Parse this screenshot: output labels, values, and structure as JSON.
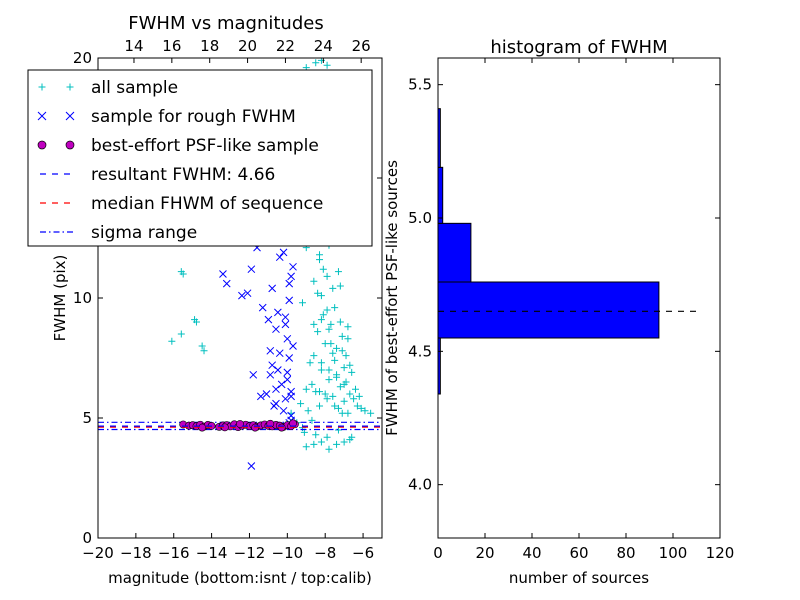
{
  "chart_data": [
    {
      "type": "scatter",
      "title": "FWHM vs magnitudes",
      "xlabel": "magnitude (bottom:isnt / top:calib)",
      "ylabel": "FWHM (pix)",
      "xlim": [
        -20,
        -5
      ],
      "ylim": [
        0,
        20
      ],
      "top_xlim": [
        12.1,
        27.1
      ],
      "x_ticks": [
        "−20",
        "−18",
        "−16",
        "−14",
        "−12",
        "−10",
        "−8",
        "−6"
      ],
      "y_ticks": [
        "0",
        "5",
        "10",
        "15",
        "20"
      ],
      "top_ticks": [
        "14",
        "16",
        "18",
        "20",
        "22",
        "24",
        "26"
      ],
      "grid": false,
      "legend_position": "upper-left",
      "legend": [
        "all sample",
        "sample for rough FWHM",
        "best-effort PSF-like sample",
        "resultant FWHM: 4.66",
        "median FHWM of sequence",
        "sigma range"
      ],
      "colors": {
        "all_sample": "#00bfbf",
        "rough_sample": "#0000ff",
        "psf_sample": "#bf00bf",
        "resultant_line": "#0000ff",
        "median_line": "#ff0000",
        "sigma_line": "#0000ff"
      },
      "resultant_fwhm": 4.66,
      "median_fwhm_sequence": 4.62,
      "sigma_range": [
        4.52,
        4.82
      ],
      "series": [
        {
          "name": "all sample",
          "marker": "+",
          "x": [
            -15.6,
            -15.5,
            -15.6,
            -14.9,
            -14.8,
            -14.4,
            -14.5,
            -16.1,
            -10.1,
            -9.8,
            -9.5,
            -9.3,
            -9.2,
            -9.0,
            -8.9,
            -8.8,
            -8.7,
            -8.6,
            -8.5,
            -8.4,
            -8.3,
            -8.2,
            -8.1,
            -8.0,
            -7.9,
            -7.8,
            -7.7,
            -7.6,
            -7.5,
            -7.4,
            -7.3,
            -7.2,
            -7.1,
            -7.0,
            -6.9,
            -6.8,
            -6.7,
            -6.5,
            -6.3,
            -6.1,
            -5.9,
            -5.6,
            -9.2,
            -9.0,
            -8.8,
            -8.6,
            -8.4,
            -8.2,
            -8.0,
            -7.8,
            -7.6,
            -7.4,
            -7.2,
            -7.0,
            -6.8,
            -6.6,
            -6.4,
            -6.2,
            -8.9,
            -8.7,
            -8.5,
            -8.3,
            -8.1,
            -7.9,
            -7.7,
            -7.5,
            -7.3,
            -7.1,
            -6.9,
            -6.7,
            -8.8,
            -8.4,
            -8.0,
            -7.6,
            -7.2,
            -6.8,
            -9.1,
            -8.5,
            -7.9,
            -7.3,
            -6.7,
            -9.0,
            -8.6,
            -8.2,
            -7.8,
            -7.4,
            -7.0,
            -6.6,
            -8.7,
            -8.3,
            -7.9,
            -7.5,
            -7.1,
            -8.6,
            -8.2,
            -7.8,
            -7.4,
            -7.0,
            -8.4,
            -8.0,
            -7.6,
            -8.1,
            -7.7,
            -8.5,
            -9.0,
            -8.2,
            -7.9,
            -8.6,
            -8.9,
            -8.3,
            -8.7,
            -8.1,
            -8.0,
            -8.4,
            -7.8,
            -8.2
          ],
          "y": [
            11.1,
            11.0,
            8.5,
            9.1,
            9.0,
            7.8,
            8.0,
            8.2,
            4.7,
            5.2,
            4.8,
            5.6,
            4.6,
            6.2,
            5.3,
            7.3,
            4.9,
            8.9,
            6.1,
            10.2,
            5.5,
            7.0,
            11.2,
            6.0,
            9.5,
            6.6,
            8.1,
            5.9,
            7.4,
            6.8,
            5.4,
            6.3,
            7.8,
            5.7,
            6.5,
            5.2,
            6.0,
            5.8,
            5.5,
            5.4,
            5.3,
            5.2,
            9.8,
            12.1,
            13.5,
            10.7,
            14.2,
            9.1,
            12.5,
            8.7,
            10.4,
            7.9,
            9.0,
            7.1,
            8.3,
            6.9,
            6.2,
            5.9,
            15.0,
            16.8,
            13.9,
            11.8,
            15.6,
            10.9,
            12.8,
            9.6,
            11.1,
            8.4,
            7.6,
            7.2,
            18.6,
            17.2,
            14.8,
            13.0,
            10.5,
            8.8,
            4.4,
            4.3,
            4.2,
            4.5,
            4.1,
            3.8,
            3.9,
            4.0,
            3.7,
            3.9,
            4.0,
            4.2,
            6.4,
            6.1,
            5.8,
            5.5,
            5.2,
            7.6,
            7.3,
            7.0,
            6.7,
            6.4,
            8.6,
            8.1,
            7.7,
            9.3,
            8.9,
            19.8,
            19.6,
            19.9,
            19.7,
            14.3,
            12.7,
            11.6,
            15.9,
            16.2,
            17.6,
            13.3,
            12.2,
            10.1
          ]
        },
        {
          "name": "sample for rough FWHM",
          "marker": "x",
          "x": [
            -13.4,
            -13.2,
            -12.4,
            -12.1,
            -11.9,
            -11.6,
            -11.3,
            -11.0,
            -10.9,
            -10.7,
            -10.6,
            -10.4,
            -10.3,
            -10.1,
            -10.0,
            -9.9,
            -9.8,
            -9.7,
            -10.8,
            -10.5,
            -10.2,
            -9.9,
            -9.7,
            -10.6,
            -10.3,
            -10.0,
            -9.8,
            -10.9,
            -10.4,
            -10.1,
            -9.8,
            -11.1,
            -10.7,
            -10.2,
            -9.9,
            -10.5,
            -10.0,
            -9.8,
            -11.8,
            -11.4,
            -10.8,
            -10.3,
            -9.9,
            -10.6,
            -10.1,
            -9.8,
            -11.9
          ],
          "y": [
            11.0,
            10.6,
            10.1,
            10.2,
            11.2,
            12.1,
            9.6,
            9.1,
            7.8,
            13.0,
            6.2,
            11.7,
            12.4,
            8.9,
            8.3,
            10.6,
            6.1,
            11.3,
            7.2,
            9.4,
            11.9,
            7.5,
            8.0,
            5.6,
            6.4,
            6.9,
            5.1,
            6.8,
            7.7,
            5.8,
            4.9,
            6.0,
            5.5,
            5.3,
            4.8,
            7.0,
            6.6,
            5.9,
            6.8,
            5.9,
            10.4,
            12.6,
            9.9,
            8.7,
            9.2,
            10.9,
            3.0
          ]
        },
        {
          "name": "best-effort PSF-like sample",
          "marker": "o",
          "x": [
            -15.5,
            -15.2,
            -15.0,
            -14.8,
            -14.6,
            -14.4,
            -14.2,
            -14.0,
            -13.6,
            -13.4,
            -13.2,
            -13.0,
            -12.8,
            -12.6,
            -12.4,
            -12.2,
            -12.0,
            -11.8,
            -11.6,
            -11.4,
            -11.2,
            -11.0,
            -10.8,
            -10.6,
            -10.4,
            -10.2,
            -10.0,
            -9.8,
            -9.6,
            -14.5,
            -13.3,
            -12.5,
            -11.7,
            -10.9,
            -10.3,
            -9.7
          ],
          "y": [
            4.73,
            4.68,
            4.7,
            4.66,
            4.72,
            4.64,
            4.71,
            4.67,
            4.63,
            4.69,
            4.7,
            4.65,
            4.74,
            4.62,
            4.68,
            4.72,
            4.66,
            4.7,
            4.64,
            4.69,
            4.73,
            4.67,
            4.65,
            4.71,
            4.68,
            4.63,
            4.7,
            4.66,
            4.74,
            4.6,
            4.61,
            4.75,
            4.6,
            4.76,
            4.6,
            4.78
          ]
        }
      ]
    },
    {
      "type": "bar",
      "orientation": "horizontal",
      "title": "histogram of FWHM",
      "xlabel": "number of sources",
      "ylabel": "FWHM of best-effort PSF-like sources",
      "xlim": [
        0,
        120
      ],
      "ylim": [
        3.8,
        5.6
      ],
      "x_ticks": [
        "0",
        "20",
        "40",
        "60",
        "80",
        "100",
        "120"
      ],
      "y_ticks": [
        "4.0",
        "4.5",
        "5.0",
        "5.5"
      ],
      "grid": false,
      "bar_color": "#0000ff",
      "bins": [
        {
          "from": 4.34,
          "to": 4.55,
          "count": 1
        },
        {
          "from": 4.55,
          "to": 4.76,
          "count": 94
        },
        {
          "from": 4.76,
          "to": 4.98,
          "count": 14
        },
        {
          "from": 4.98,
          "to": 5.19,
          "count": 2
        },
        {
          "from": 5.19,
          "to": 5.41,
          "count": 1
        }
      ],
      "median_line": 4.65,
      "median_line_xlim": [
        0,
        110
      ]
    }
  ]
}
